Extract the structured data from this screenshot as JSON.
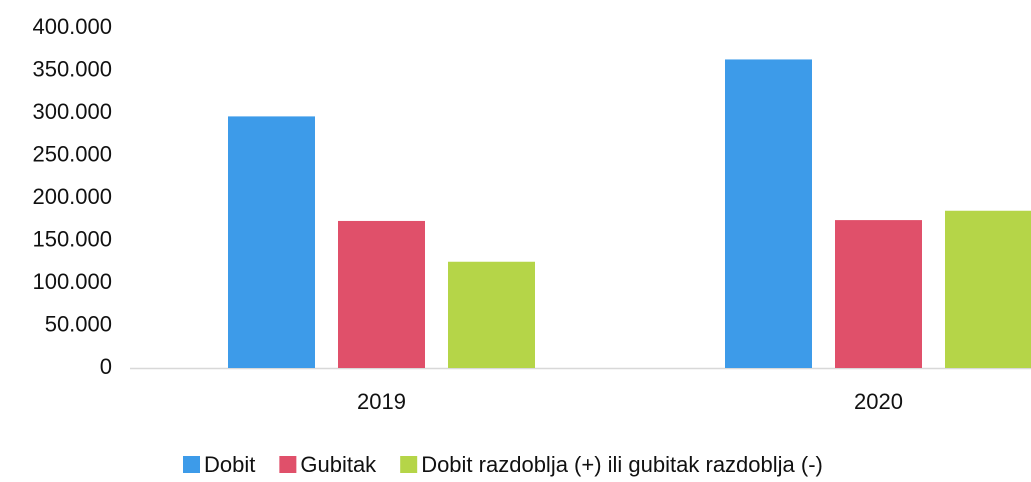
{
  "chart_data": {
    "type": "bar",
    "categories": [
      "2019",
      "2020"
    ],
    "series": [
      {
        "name": "Dobit",
        "color": "#3d9be9",
        "values": [
          296000,
          363000
        ]
      },
      {
        "name": "Gubitak",
        "color": "#e0506a",
        "values": [
          173000,
          174000
        ]
      },
      {
        "name": "Dobit razdoblja (+) ili gubitak razdoblja (-)",
        "color": "#b5d548",
        "values": [
          125000,
          185000
        ]
      }
    ],
    "ylim": [
      0,
      400000
    ],
    "yticks": [
      0,
      {
        "value": 50000,
        "label": "50.000"
      },
      {
        "value": 100000,
        "label": "100.000"
      },
      {
        "value": 150000,
        "label": "150.000"
      },
      {
        "value": 200000,
        "label": "200.000"
      },
      {
        "value": 250000,
        "label": "250.000"
      },
      {
        "value": 300000,
        "label": "300.000"
      },
      {
        "value": 350000,
        "label": "350.000"
      },
      {
        "value": 400000,
        "label": "400.000"
      }
    ],
    "grid": false,
    "legend": "bottom"
  }
}
